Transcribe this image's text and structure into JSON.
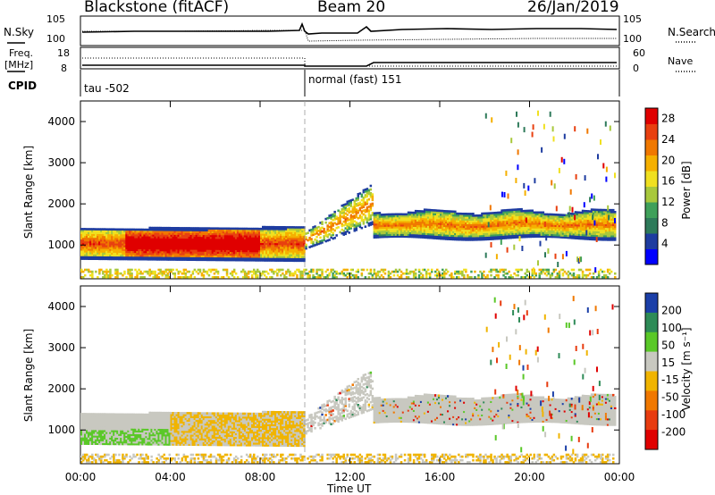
{
  "header": {
    "station": "Blackstone (fitACF)",
    "beam": "Beam 20",
    "date": "26/Jan/2019"
  },
  "status_panels": {
    "nsky_label": "N.Sky",
    "nsearch_label": "N.Search",
    "noise_top_left": "10^5",
    "noise_bot_left": "10^0",
    "noise_top_right": "10^5",
    "noise_bot_right": "10^0",
    "freq_label": "Freq.",
    "freq_unit": "[MHz]",
    "freq_top": "18",
    "freq_bot": "8",
    "nave_label": "Nave",
    "nave_top": "60",
    "nave_bot": "0",
    "cpid_label": "CPID",
    "cpid_segments": [
      {
        "label": "tau -502",
        "start_hour": 0,
        "end_hour": 10
      },
      {
        "label": "normal (fast) 151",
        "start_hour": 10,
        "end_hour": 24
      }
    ]
  },
  "chart_data": [
    {
      "type": "heatmap",
      "title": "",
      "ylabel": "Slant Range [km]",
      "xlabel": "Time UT",
      "quantity": "power",
      "colorbar_label": "Power [dB]",
      "colorbar_ticks": [
        "4",
        "8",
        "12",
        "16",
        "20",
        "24",
        "28"
      ],
      "clim": [
        0,
        30
      ],
      "ylim": [
        180,
        4500
      ],
      "yticks": [
        "1000",
        "2000",
        "3000",
        "4000"
      ],
      "xlim": [
        0,
        24
      ],
      "xticks": [
        "00:00",
        "04:00",
        "08:00",
        "12:00",
        "16:00",
        "20:00",
        "00:00"
      ],
      "colors": [
        "#0000ff",
        "#1e3ca0",
        "#2e7a5a",
        "#3fa05a",
        "#a8c83c",
        "#f0e020",
        "#f5b000",
        "#f07800",
        "#e84010",
        "#e00000"
      ]
    },
    {
      "type": "heatmap",
      "title": "",
      "ylabel": "Slant Range [km]",
      "xlabel": "Time UT",
      "quantity": "velocity",
      "colorbar_label": "Velocity [m s^-1]",
      "colorbar_ticks": [
        "200",
        "100",
        "50",
        "15",
        "-15",
        "-50",
        "-100",
        "-200"
      ],
      "clim": [
        -250,
        250
      ],
      "ylim": [
        180,
        4500
      ],
      "yticks": [
        "1000",
        "2000",
        "3000",
        "4000"
      ],
      "xlim": [
        0,
        24
      ],
      "xticks": [
        "00:00",
        "04:00",
        "08:00",
        "12:00",
        "16:00",
        "20:00",
        "00:00"
      ],
      "colors": [
        "#1b3fa8",
        "#2e8b57",
        "#5ac828",
        "#c8c8c0",
        "#f0b400",
        "#f07800",
        "#e83c10",
        "#e00000"
      ]
    }
  ],
  "time_axis_label": "Time UT"
}
